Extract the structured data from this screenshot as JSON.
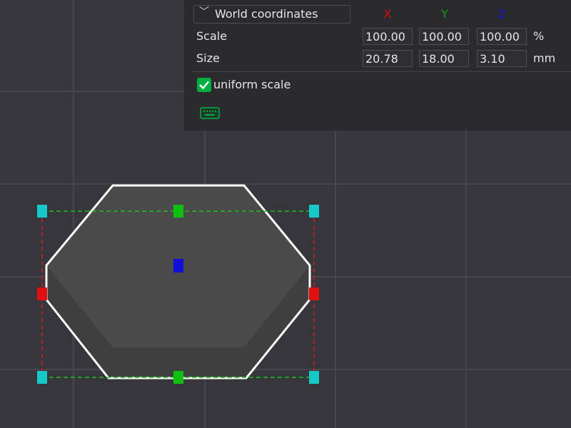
{
  "panel": {
    "coordinate_mode": "World coordinates",
    "axes": [
      "X",
      "Y",
      "Z"
    ],
    "rows": [
      {
        "label": "Scale",
        "values": [
          "100.00",
          "100.00",
          "100.00"
        ],
        "unit": "%"
      },
      {
        "label": "Size",
        "values": [
          "20.78",
          "18.00",
          "3.10"
        ],
        "unit": "mm"
      }
    ],
    "uniform_scale": {
      "label": "uniform scale",
      "checked": true
    }
  }
}
